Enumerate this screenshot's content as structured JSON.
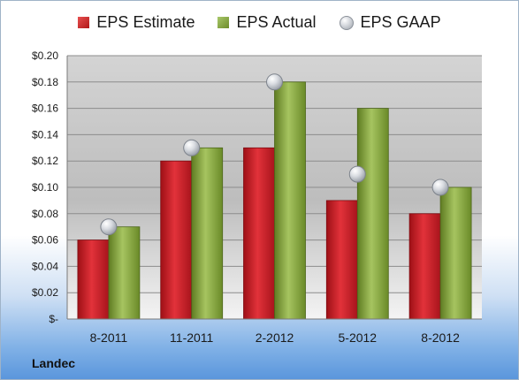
{
  "company": "Landec",
  "legend": {
    "estimate": "EPS Estimate",
    "actual": "EPS Actual",
    "gaap": "EPS GAAP"
  },
  "colors": {
    "estimate": "#c0202a",
    "actual": "#8aaa40",
    "gaap": "#b9bec6"
  },
  "chart_data": {
    "type": "bar",
    "title": "",
    "xlabel": "",
    "ylabel": "",
    "ylim": [
      0,
      0.2
    ],
    "categories": [
      "8-2011",
      "11-2011",
      "2-2012",
      "5-2012",
      "8-2012"
    ],
    "y_tick_labels": [
      "$-",
      "$0.02",
      "$0.04",
      "$0.06",
      "$0.08",
      "$0.10",
      "$0.12",
      "$0.14",
      "$0.16",
      "$0.18",
      "$0.20"
    ],
    "series": [
      {
        "name": "EPS Estimate",
        "type": "bar",
        "values": [
          0.06,
          0.12,
          0.13,
          0.09,
          0.08
        ]
      },
      {
        "name": "EPS Actual",
        "type": "bar",
        "values": [
          0.07,
          0.13,
          0.18,
          0.16,
          0.1
        ]
      },
      {
        "name": "EPS GAAP",
        "type": "scatter",
        "values": [
          0.07,
          0.13,
          0.18,
          0.11,
          0.1
        ]
      }
    ],
    "grid": true,
    "legend_position": "top"
  }
}
